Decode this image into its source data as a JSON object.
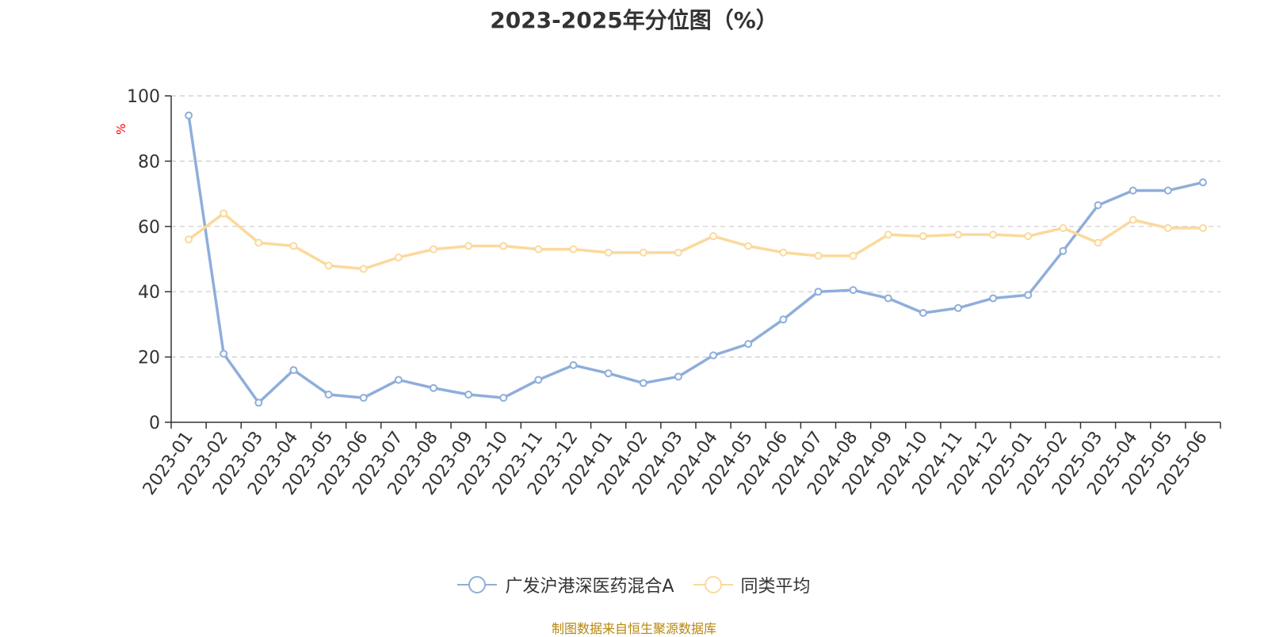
{
  "chart_data": {
    "type": "line",
    "title": "2023-2025年分位图（%）",
    "ylabel": "%",
    "ylim": [
      0,
      100
    ],
    "yticks": [
      0,
      20,
      40,
      60,
      80,
      100
    ],
    "grid": true,
    "legend_position": "bottom-center",
    "x": [
      "2023-01",
      "2023-02",
      "2023-03",
      "2023-04",
      "2023-05",
      "2023-06",
      "2023-07",
      "2023-08",
      "2023-09",
      "2023-10",
      "2023-11",
      "2023-12",
      "2024-01",
      "2024-02",
      "2024-03",
      "2024-04",
      "2024-05",
      "2024-06",
      "2024-07",
      "2024-08",
      "2024-09",
      "2024-10",
      "2024-11",
      "2024-12",
      "2025-01",
      "2025-02",
      "2025-03",
      "2025-04",
      "2025-05",
      "2025-06"
    ],
    "series": [
      {
        "name": "广发沪港深医药混合A",
        "color": "#8eaedb",
        "values": [
          94,
          21,
          6,
          16,
          8.5,
          7.5,
          13,
          10.5,
          8.5,
          7.5,
          13,
          17.5,
          15,
          12,
          14,
          20.5,
          24,
          31.5,
          40,
          40.5,
          38,
          33.5,
          35,
          38,
          39,
          52.5,
          66.5,
          71,
          71,
          73.5
        ]
      },
      {
        "name": "同类平均",
        "color": "#fbd99b",
        "values": [
          56,
          64,
          55,
          54,
          48,
          47,
          50.5,
          53,
          54,
          54,
          53,
          53,
          52,
          52,
          52,
          57,
          54,
          52,
          51,
          51,
          57.5,
          57,
          57.5,
          57.5,
          57,
          59.5,
          55,
          62,
          59.5,
          59.5
        ]
      }
    ]
  },
  "source_text": "制图数据来自恒生聚源数据库"
}
